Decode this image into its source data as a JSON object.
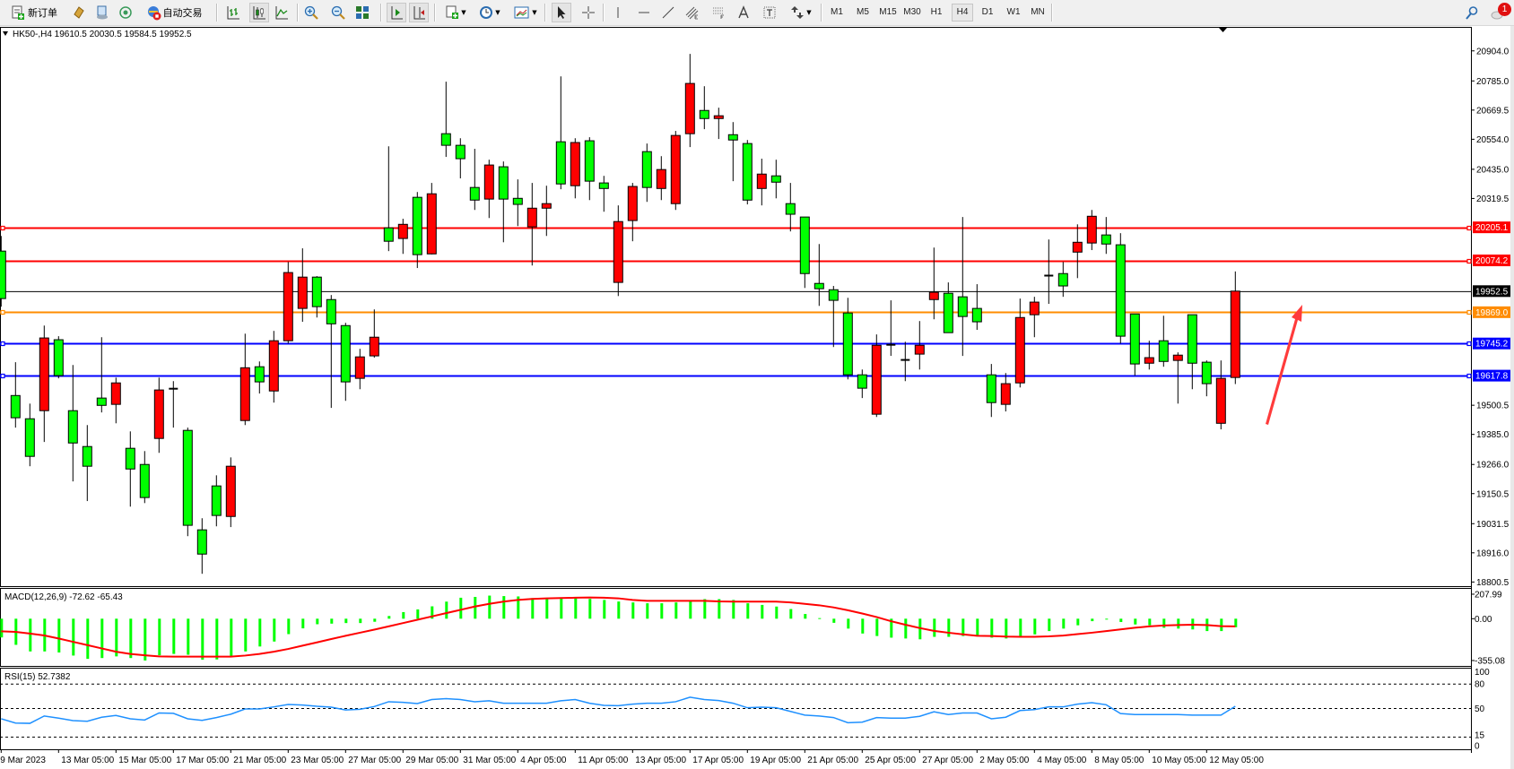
{
  "toolbar": {
    "new_order_label": "新订单",
    "auto_trading_label": "自动交易",
    "timeframes": [
      "M1",
      "M5",
      "M15",
      "M30",
      "H1",
      "H4",
      "D1",
      "W1",
      "MN"
    ],
    "selected_timeframe": "H4",
    "notification_count": "1",
    "icons": [
      "new-order-icon",
      "market-watch-icon",
      "navigator-icon",
      "signals-icon",
      "auto-trading-icon",
      "bar-chart-icon",
      "candlestick-chart-icon",
      "line-chart-icon",
      "zoom-in-icon",
      "zoom-out-icon",
      "tile-windows-icon",
      "auto-scroll-icon",
      "chart-shift-icon",
      "indicators-icon",
      "periodicity-icon",
      "templates-icon",
      "cursor-icon",
      "crosshair-icon",
      "vertical-line-icon",
      "horizontal-line-icon",
      "trendline-icon",
      "equidistant-channel-icon",
      "fibonacci-icon",
      "text-icon",
      "text-label-icon",
      "arrows-icon",
      "search-icon",
      "notification-icon"
    ]
  },
  "chart": {
    "info": "HK50-,H4  19610.5 20030.5 19584.5 19952.5",
    "macd_label": "MACD(12,26,9) -72.62 -65.43",
    "rsi_label": "RSI(15) 52.7382"
  },
  "chart_data": [
    {
      "type": "candlestick",
      "symbol": "HK50-",
      "timeframe": "H4",
      "ylim": [
        18784,
        20999
      ],
      "colors": {
        "up": "#ff0000",
        "down": "#00ff00",
        "outline": "#000000"
      },
      "price_ticks": [
        "20904.0",
        "20785.0",
        "20669.5",
        "20554.0",
        "20435.0",
        "20319.5",
        "19500.5",
        "19385.0",
        "19266.0",
        "19150.5",
        "19031.5",
        "18916.0",
        "18800.5"
      ],
      "time_labels": [
        "9 Mar 2023",
        "13 Mar 05:00",
        "15 Mar 05:00",
        "17 Mar 05:00",
        "21 Mar 05:00",
        "23 Mar 05:00",
        "27 Mar 05:00",
        "29 Mar 05:00",
        "31 Mar 05:00",
        "4 Apr 05:00",
        "11 Apr 05:00",
        "13 Apr 05:00",
        "17 Apr 05:00",
        "19 Apr 05:00",
        "21 Apr 05:00",
        "25 Apr 05:00",
        "27 Apr 05:00",
        "2 May 05:00",
        "4 May 05:00",
        "8 May 05:00",
        "10 May 05:00",
        "12 May 05:00"
      ],
      "time_label_every_n_bars": 4,
      "candles_ohlc": [
        [
          20111,
          20171,
          19891,
          19923
        ],
        [
          19539,
          19671,
          19412,
          19451
        ],
        [
          19447,
          19507,
          19259,
          19298
        ],
        [
          19479,
          19816,
          19355,
          19767
        ],
        [
          19760,
          19774,
          19607,
          19618
        ],
        [
          19479,
          19660,
          19199,
          19351
        ],
        [
          19337,
          19422,
          19121,
          19259
        ],
        [
          19529,
          19770,
          19472,
          19500
        ],
        [
          19504,
          19610,
          19429,
          19589
        ],
        [
          19330,
          19397,
          19099,
          19248
        ],
        [
          19266,
          19319,
          19113,
          19135
        ],
        [
          19369,
          19610,
          19312,
          19561
        ],
        [
          19566,
          19596,
          19412,
          19562
        ],
        [
          19401,
          19412,
          18982,
          19025
        ],
        [
          19007,
          19053,
          18833,
          18911
        ],
        [
          19181,
          19223,
          19021,
          19064
        ],
        [
          19060,
          19294,
          19018,
          19259
        ],
        [
          19440,
          19784,
          19422,
          19649
        ],
        [
          19653,
          19674,
          19547,
          19593
        ],
        [
          19557,
          19795,
          19511,
          19756
        ],
        [
          19756,
          20068,
          19745,
          20026
        ],
        [
          19884,
          20122,
          19831,
          20008
        ],
        [
          20008,
          20012,
          19848,
          19891
        ],
        [
          19919,
          19937,
          19490,
          19823
        ],
        [
          19816,
          19827,
          19518,
          19593
        ],
        [
          19607,
          19724,
          19564,
          19692
        ],
        [
          19696,
          19880,
          19689,
          19770
        ],
        [
          20203,
          20526,
          20111,
          20150
        ],
        [
          20161,
          20239,
          20100,
          20217
        ],
        [
          20324,
          20345,
          20044,
          20097
        ],
        [
          20100,
          20381,
          20098,
          20338
        ],
        [
          20576,
          20782,
          20484,
          20530
        ],
        [
          20530,
          20558,
          20399,
          20477
        ],
        [
          20363,
          20516,
          20274,
          20313
        ],
        [
          20317,
          20473,
          20242,
          20452
        ],
        [
          20445,
          20466,
          20146,
          20317
        ],
        [
          20320,
          20395,
          20210,
          20296
        ],
        [
          20207,
          20381,
          20054,
          20281
        ],
        [
          20281,
          20370,
          20171,
          20299
        ],
        [
          20544,
          20803,
          20356,
          20377
        ],
        [
          20370,
          20558,
          20320,
          20541
        ],
        [
          20548,
          20562,
          20313,
          20388
        ],
        [
          20381,
          20409,
          20267,
          20359
        ],
        [
          19987,
          20292,
          19933,
          20228
        ],
        [
          20232,
          20381,
          20150,
          20367
        ],
        [
          20505,
          20537,
          20306,
          20363
        ],
        [
          20359,
          20487,
          20313,
          20434
        ],
        [
          20299,
          20587,
          20274,
          20569
        ],
        [
          20576,
          20892,
          20523,
          20775
        ],
        [
          20668,
          20764,
          20594,
          20636
        ],
        [
          20636,
          20679,
          20555,
          20647
        ],
        [
          20572,
          20622,
          20388,
          20551
        ],
        [
          20537,
          20551,
          20296,
          20313
        ],
        [
          20359,
          20477,
          20292,
          20416
        ],
        [
          20409,
          20473,
          20320,
          20384
        ],
        [
          20299,
          20381,
          20189,
          20257
        ],
        [
          20246,
          20246,
          19965,
          20022
        ],
        [
          19983,
          20139,
          19894,
          19962
        ],
        [
          19958,
          19973,
          19731,
          19916
        ],
        [
          19866,
          19926,
          19603,
          19621
        ],
        [
          19621,
          19642,
          19529,
          19568
        ],
        [
          19465,
          19781,
          19454,
          19738
        ],
        [
          19740,
          19916,
          19696,
          19736
        ],
        [
          19680,
          19752,
          19596,
          19676
        ],
        [
          19703,
          19834,
          19642,
          19738
        ],
        [
          19919,
          20125,
          19841,
          19948
        ],
        [
          19944,
          19987,
          19788,
          19788
        ],
        [
          19930,
          20246,
          19696,
          19852
        ],
        [
          19884,
          19980,
          19799,
          19831
        ],
        [
          19621,
          19664,
          19454,
          19511
        ],
        [
          19504,
          19628,
          19476,
          19586
        ],
        [
          19589,
          19923,
          19571,
          19848
        ],
        [
          19859,
          19930,
          19770,
          19909
        ],
        [
          20014,
          20157,
          19902,
          20010
        ],
        [
          20022,
          20068,
          19930,
          19973
        ],
        [
          20107,
          20217,
          20004,
          20146
        ],
        [
          20143,
          20274,
          20115,
          20249
        ],
        [
          20175,
          20246,
          20100,
          20139
        ],
        [
          20136,
          20182,
          19745,
          19774
        ],
        [
          19862,
          19862,
          19618,
          19664
        ],
        [
          19667,
          19756,
          19642,
          19689
        ],
        [
          19756,
          19855,
          19653,
          19674
        ],
        [
          19678,
          19710,
          19507,
          19699
        ],
        [
          19859,
          19859,
          19564,
          19667
        ],
        [
          19671,
          19678,
          19536,
          19586
        ],
        [
          19429,
          19678,
          19405,
          19607
        ],
        [
          19610.5,
          20030.5,
          19584.5,
          19952.5
        ]
      ],
      "horizontal_lines": [
        {
          "price": "20205.1",
          "color": "#ff0000"
        },
        {
          "price": "20074.2",
          "color": "#ff0000"
        },
        {
          "price": "19869.0",
          "color": "#ff8c00"
        },
        {
          "price": "19745.2",
          "color": "#0000ff"
        },
        {
          "price": "19617.8",
          "color": "#0000ff"
        }
      ],
      "current_price": {
        "price": "19952.5",
        "color": "#000000"
      },
      "annotation": {
        "type": "arrow",
        "color": "#ff3b3b",
        "direction": "up"
      }
    },
    {
      "type": "bar",
      "indicator": "MACD(12,26,9)",
      "ylim": [
        -401,
        261
      ],
      "axis_labels": [
        "207.99",
        "0.00",
        "-355.08"
      ],
      "histogram_color": "#00ff00",
      "signal_color": "#ff0000",
      "macd": [
        -159,
        -222,
        -278,
        -278,
        -287,
        -313,
        -341,
        -334,
        -320,
        -334,
        -355,
        -311,
        -299,
        -306,
        -348,
        -346,
        -325,
        -278,
        -236,
        -194,
        -131,
        -82,
        -47,
        -42,
        -37,
        -37,
        -26,
        23,
        56,
        79,
        105,
        145,
        178,
        185,
        196,
        192,
        189,
        175,
        173,
        173,
        173,
        168,
        159,
        146,
        138,
        131,
        131,
        138,
        150,
        166,
        166,
        159,
        131,
        117,
        103,
        82,
        40,
        5,
        -35,
        -84,
        -126,
        -147,
        -161,
        -168,
        -175,
        -154,
        -154,
        -147,
        -147,
        -161,
        -168,
        -154,
        -133,
        -105,
        -84,
        -56,
        -21,
        -7,
        -28,
        -49,
        -56,
        -77,
        -84,
        -91,
        -105,
        -105,
        -72.62
      ],
      "signal": [
        -107,
        -112,
        -126,
        -142,
        -168,
        -196,
        -224,
        -252,
        -280,
        -299,
        -311,
        -320,
        -322,
        -322,
        -322,
        -322,
        -322,
        -313,
        -299,
        -280,
        -257,
        -229,
        -201,
        -173,
        -145,
        -119,
        -93,
        -65,
        -37,
        -9,
        19,
        47,
        75,
        103,
        126,
        145,
        159,
        168,
        173,
        175,
        178,
        180,
        178,
        173,
        159,
        152,
        152,
        152,
        152,
        152,
        147,
        145,
        145,
        145,
        145,
        138,
        126,
        114,
        96,
        72,
        44,
        14,
        -21,
        -51,
        -79,
        -103,
        -119,
        -133,
        -145,
        -147,
        -152,
        -154,
        -154,
        -150,
        -143,
        -131,
        -119,
        -105,
        -91,
        -77,
        -65,
        -58,
        -54,
        -51,
        -54,
        -63,
        -65.43
      ]
    },
    {
      "type": "line",
      "indicator": "RSI(15)",
      "ylim": [
        0,
        100
      ],
      "levels": [
        80,
        50,
        15
      ],
      "axis_labels": [
        "100",
        "80",
        "50",
        "15",
        "0"
      ],
      "color": "#1e90ff",
      "values": [
        37.4,
        32.2,
        31.8,
        40.8,
        38.2,
        35.2,
        34.4,
        39.3,
        41.5,
        37.4,
        35.9,
        44.5,
        44.1,
        37.4,
        35.5,
        38.9,
        43,
        49.4,
        49.4,
        52,
        55,
        54.2,
        52.7,
        51.6,
        48.2,
        49,
        52.4,
        58.3,
        57.6,
        56.1,
        61,
        62.1,
        61,
        58.3,
        59.5,
        56.5,
        56.5,
        56.5,
        56.5,
        59.5,
        61,
        56.5,
        53.9,
        53.5,
        55.3,
        56.5,
        56.5,
        58.3,
        63.9,
        61,
        59.8,
        56.5,
        50.9,
        51.6,
        50.9,
        46.4,
        41.9,
        40.8,
        38.9,
        32.6,
        33.3,
        38.9,
        38.2,
        38.2,
        40.4,
        46,
        42.6,
        44.5,
        44.5,
        37.4,
        39.3,
        47.5,
        48.6,
        52,
        52,
        55.3,
        57.2,
        54.6,
        43.8,
        42.6,
        42.6,
        42.6,
        42.6,
        41.9,
        41.9,
        41.9,
        52.7382
      ]
    }
  ]
}
